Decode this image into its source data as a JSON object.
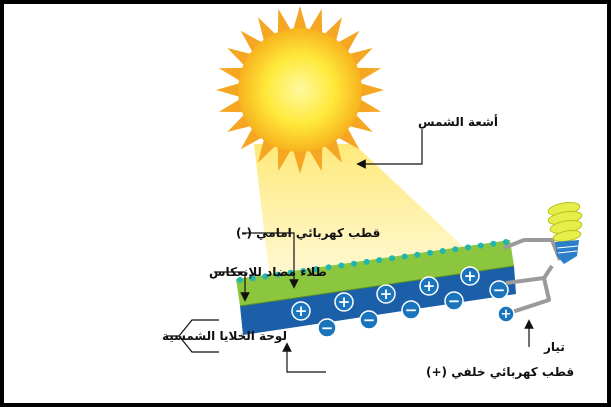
{
  "labels": {
    "sun_rays": "أشعة الشمس",
    "front_electrode": "قطب كهربائي امامي (-)",
    "anti_reflective": "طلاء مضاد للإنعكاس",
    "solar_panel": "لوحة الخلايا الشمسية",
    "back_electrode": "قطب كهربائي خلفي (+)",
    "current": "تيار"
  },
  "colors": {
    "sun_core": "#FFE93A",
    "sun_edge": "#F5A623",
    "beam": "#FFF2A8",
    "top_layer": "#8CC63F",
    "bottom_layer": "#1B5FA8",
    "coating_dots": "#22B5B0",
    "charge_circle": "#1B75BC",
    "wire": "#9A9A9A",
    "bulb": "#E6EE4A",
    "bulb_base": "#2C7EC8"
  },
  "charges": {
    "positive": "+",
    "negative": "−"
  },
  "icons": [
    "sun-icon",
    "light-bulb-icon"
  ]
}
